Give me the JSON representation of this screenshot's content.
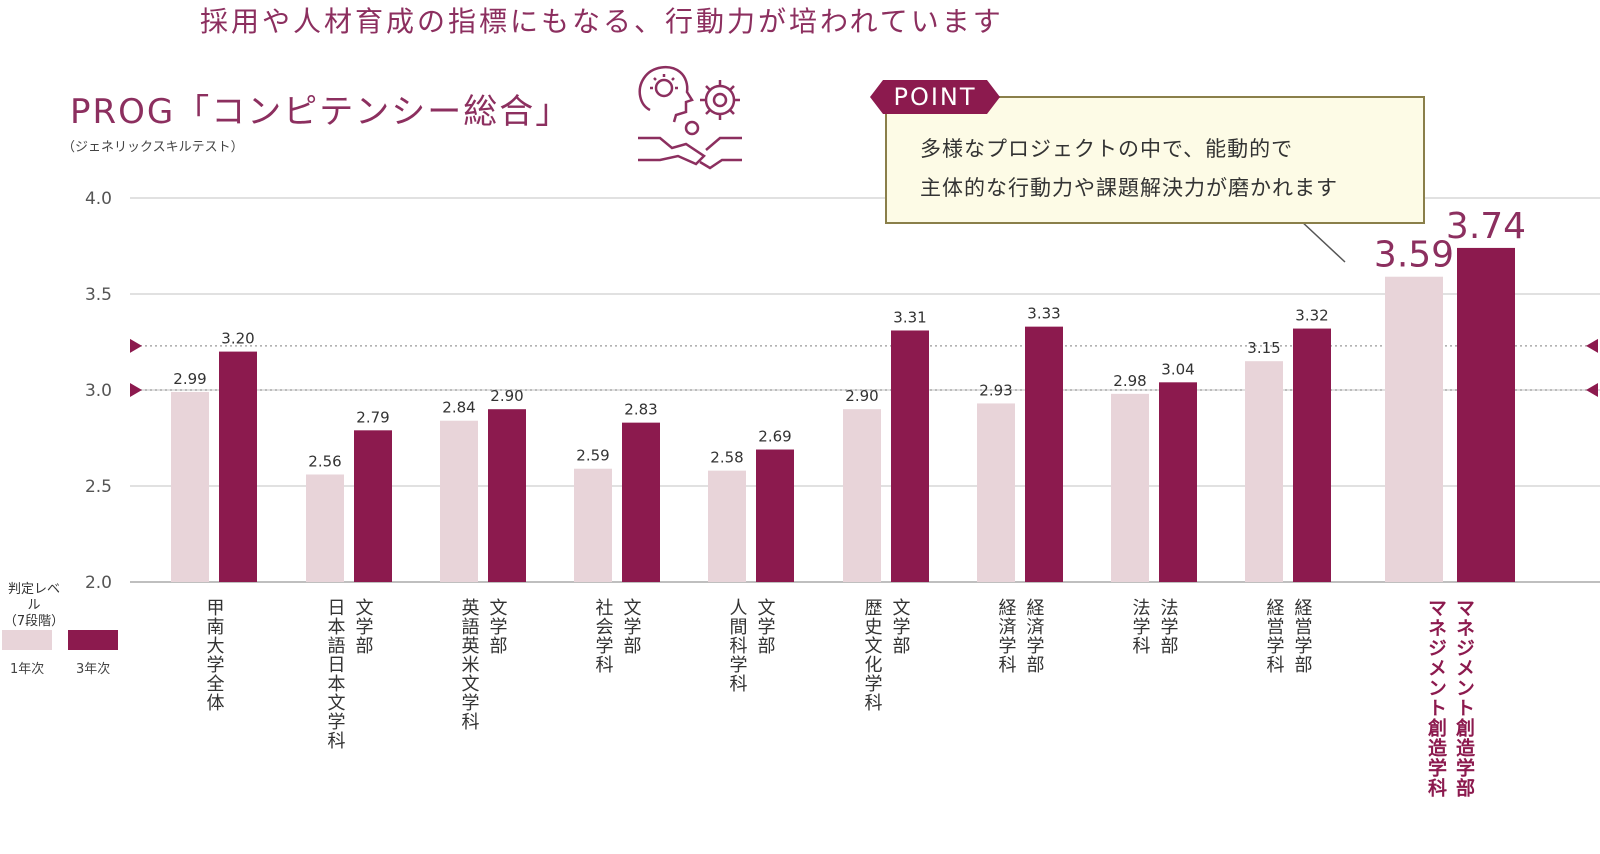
{
  "headline": "採用や人材育成の指標にもなる、行動力が培われています",
  "point": {
    "tag": "POINT",
    "line1": "多様なプロジェクトの中で、能動的で",
    "line2": "主体的な行動力や課題解決力が磨かれます"
  },
  "legend": {
    "title_line1": "判定レベル",
    "title_line2": "（7段階）",
    "series1": "1年次",
    "series2": "3年次"
  },
  "colors": {
    "accent": "#8c1a4e",
    "light": "#e8d4d9",
    "title": "#8c2f5f"
  },
  "icon": "idea-gears-handshake-icon",
  "chart_data": {
    "type": "bar",
    "title": "PROG「コンピテンシー総合」",
    "subtitle": "（ジェネリックスキルテスト）",
    "ylim": [
      2.0,
      4.0
    ],
    "yticks": [
      "4.0",
      "3.5",
      "3.0",
      "2.5",
      "2.0"
    ],
    "grid": true,
    "reference_levels": [
      3.23,
      3.0
    ],
    "categories": [
      {
        "line1": "甲南大学全体",
        "line2": ""
      },
      {
        "line1": "文学部",
        "line2": "日本語日本文学科"
      },
      {
        "line1": "文学部",
        "line2": "英語英米文学科"
      },
      {
        "line1": "文学部",
        "line2": "社会学科"
      },
      {
        "line1": "文学部",
        "line2": "人間科学科"
      },
      {
        "line1": "文学部",
        "line2": "歴史文化学科"
      },
      {
        "line1": "経済学部",
        "line2": "経済学科"
      },
      {
        "line1": "法学部",
        "line2": "法学科"
      },
      {
        "line1": "経営学部",
        "line2": "経営学科"
      },
      {
        "line1": "マネジメント創造学部",
        "line2": "マネジメント創造学科"
      }
    ],
    "series": [
      {
        "name": "1年次",
        "values": [
          2.99,
          2.56,
          2.84,
          2.59,
          2.58,
          2.9,
          2.93,
          2.98,
          3.15,
          3.59
        ],
        "labels": [
          "2.99",
          "2.56",
          "2.84",
          "2.59",
          "2.58",
          "2.90",
          "2.93",
          "2.98",
          "3.15",
          "3.59"
        ]
      },
      {
        "name": "3年次",
        "values": [
          3.2,
          2.79,
          2.9,
          2.83,
          2.69,
          3.31,
          3.33,
          3.04,
          3.32,
          3.74
        ],
        "labels": [
          "3.20",
          "2.79",
          "2.90",
          "2.83",
          "2.69",
          "3.31",
          "3.33",
          "3.04",
          "3.32",
          "3.74"
        ]
      }
    ],
    "highlight_category": 9
  }
}
